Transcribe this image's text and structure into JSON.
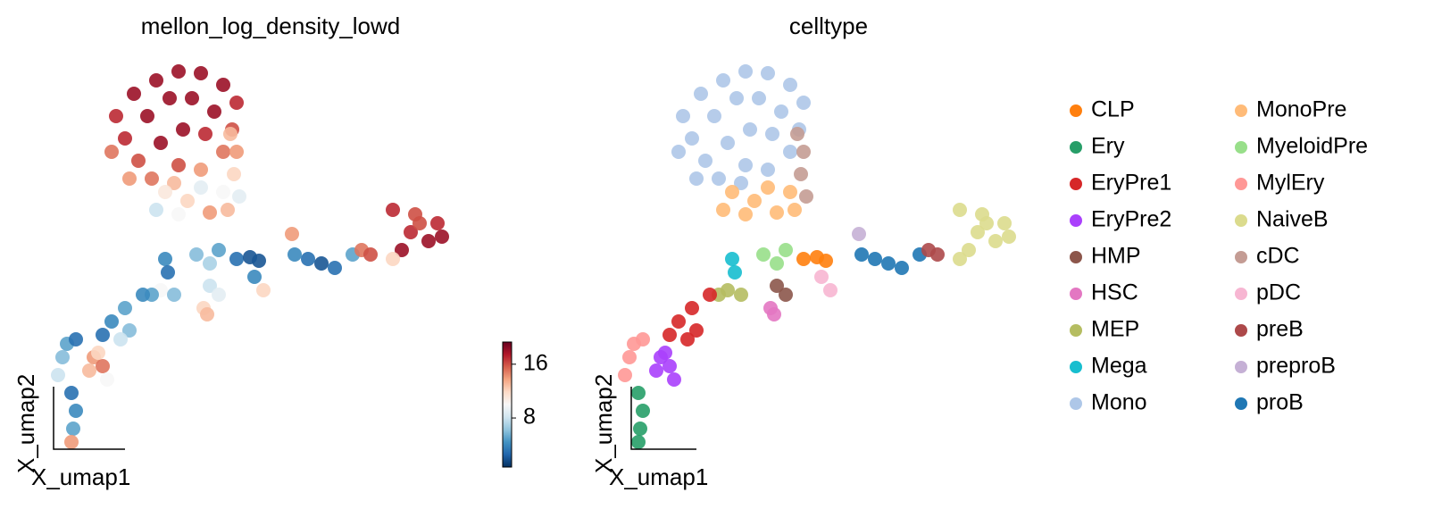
{
  "chart_data": [
    {
      "type": "scatter",
      "title": "mellon_log_density_lowd",
      "x_label": "X_umap1",
      "y_label": "X_umap2",
      "xlim": [
        0,
        560
      ],
      "ylim": [
        0,
        520
      ],
      "colormap": "RdBu_r",
      "clim": [
        0.7,
        19.3
      ],
      "colorbar_ticks": [
        8,
        16
      ],
      "x": [
        130,
        150,
        175,
        200,
        225,
        250,
        265,
        140,
        165,
        190,
        215,
        240,
        260,
        155,
        180,
        205,
        230,
        250,
        170,
        200,
        225,
        125,
        145,
        195,
        185,
        210,
        235,
        255,
        200,
        225,
        175,
        250,
        265,
        262,
        268,
        258,
        220,
        235,
        245,
        185,
        188,
        235,
        245,
        228,
        232,
        180,
        195,
        170,
        160,
        140,
        125,
        145,
        115,
        135,
        105,
        115,
        100,
        120,
        110,
        75,
        70,
        65,
        85,
        80,
        85,
        82,
        80,
        265,
        280,
        290,
        285,
        295,
        327,
        345,
        360,
        375,
        395,
        330,
        405,
        415,
        440,
        460,
        480,
        495,
        450,
        490,
        470,
        440,
        465
      ],
      "y": [
        390,
        415,
        430,
        440,
        438,
        425,
        405,
        365,
        390,
        410,
        410,
        395,
        375,
        340,
        360,
        375,
        370,
        350,
        320,
        335,
        330,
        350,
        320,
        315,
        305,
        295,
        282,
        285,
        280,
        310,
        285,
        305,
        350,
        325,
        300,
        370,
        235,
        225,
        240,
        230,
        215,
        200,
        190,
        175,
        168,
        195,
        190,
        190,
        190,
        175,
        160,
        150,
        145,
        140,
        120,
        110,
        105,
        95,
        125,
        135,
        120,
        100,
        140,
        80,
        60,
        40,
        25,
        230,
        232,
        228,
        210,
        195,
        258,
        230,
        225,
        220,
        235,
        235,
        240,
        235,
        285,
        260,
        250,
        255,
        240,
        270,
        270,
        230,
        280
      ],
      "values": [
        17,
        18,
        18,
        18,
        18,
        18,
        17,
        17,
        18,
        18,
        18,
        18,
        16,
        16,
        18,
        18,
        17,
        15,
        15,
        16,
        14,
        15,
        14,
        13,
        11,
        12,
        14,
        13,
        10,
        9,
        8,
        10,
        14,
        12,
        9,
        13,
        6,
        7,
        5,
        4,
        3,
        8,
        9,
        12,
        13,
        10,
        6,
        5,
        4,
        5,
        4,
        6,
        3,
        8,
        14,
        15,
        13,
        10,
        12,
        5,
        6,
        8,
        3,
        3,
        4,
        5,
        14,
        3,
        2,
        2,
        4,
        12,
        14,
        3,
        2,
        3,
        5,
        4,
        15,
        16,
        17,
        17,
        18,
        18,
        18,
        17,
        16,
        12,
        16
      ]
    },
    {
      "type": "scatter",
      "title": "celltype",
      "x_label": "X_umap1",
      "y_label": "X_umap2",
      "xlim": [
        0,
        560
      ],
      "ylim": [
        0,
        520
      ],
      "x": [
        130,
        150,
        175,
        200,
        225,
        250,
        265,
        140,
        165,
        190,
        215,
        240,
        260,
        155,
        180,
        205,
        230,
        250,
        170,
        200,
        225,
        125,
        145,
        195,
        185,
        210,
        235,
        255,
        200,
        225,
        175,
        250,
        265,
        262,
        268,
        258,
        220,
        235,
        245,
        185,
        188,
        235,
        245,
        228,
        232,
        180,
        195,
        170,
        160,
        140,
        125,
        145,
        115,
        135,
        105,
        115,
        100,
        120,
        110,
        75,
        70,
        65,
        85,
        80,
        85,
        82,
        80,
        265,
        280,
        290,
        285,
        295,
        327,
        345,
        360,
        375,
        395,
        330,
        405,
        415,
        440,
        460,
        480,
        495,
        450,
        490,
        470,
        440,
        465
      ],
      "y": [
        390,
        415,
        430,
        440,
        438,
        425,
        405,
        365,
        390,
        410,
        410,
        395,
        375,
        340,
        360,
        375,
        370,
        350,
        320,
        335,
        330,
        350,
        320,
        315,
        305,
        295,
        282,
        285,
        280,
        310,
        285,
        305,
        350,
        325,
        300,
        370,
        235,
        225,
        240,
        230,
        215,
        200,
        190,
        175,
        168,
        195,
        190,
        190,
        190,
        175,
        160,
        150,
        145,
        140,
        120,
        110,
        105,
        95,
        125,
        135,
        120,
        100,
        140,
        80,
        60,
        40,
        25,
        230,
        232,
        228,
        210,
        195,
        258,
        230,
        225,
        220,
        235,
        235,
        240,
        235,
        285,
        260,
        250,
        255,
        240,
        270,
        270,
        230,
        280
      ],
      "point_categories": [
        "Mono",
        "Mono",
        "Mono",
        "Mono",
        "Mono",
        "Mono",
        "Mono",
        "Mono",
        "Mono",
        "Mono",
        "Mono",
        "Mono",
        "Mono",
        "Mono",
        "Mono",
        "Mono",
        "Mono",
        "Mono",
        "Mono",
        "Mono",
        "Mono",
        "Mono",
        "Mono",
        "Mono",
        "MonoPre",
        "MonoPre",
        "MonoPre",
        "MonoPre",
        "MonoPre",
        "MonoPre",
        "MonoPre",
        "MonoPre",
        "cDC",
        "cDC",
        "cDC",
        "cDC",
        "MyeloidPre",
        "MyeloidPre",
        "MyeloidPre",
        "Mega",
        "Mega",
        "HMP",
        "HMP",
        "HSC",
        "HSC",
        "MEP",
        "MEP",
        "MEP",
        "EryPre1",
        "EryPre1",
        "EryPre1",
        "EryPre1",
        "EryPre1",
        "EryPre1",
        "EryPre2",
        "EryPre2",
        "EryPre2",
        "EryPre2",
        "EryPre2",
        "MylEry",
        "MylEry",
        "MylEry",
        "MylEry",
        "Ery",
        "Ery",
        "Ery",
        "Ery",
        "CLP",
        "CLP",
        "CLP",
        "pDC",
        "pDC",
        "preproB",
        "proB",
        "proB",
        "proB",
        "proB",
        "proB",
        "preB",
        "preB",
        "NaiveB",
        "NaiveB",
        "NaiveB",
        "NaiveB",
        "NaiveB",
        "NaiveB",
        "NaiveB",
        "NaiveB",
        "NaiveB"
      ],
      "legend": {
        "entries": [
          "CLP",
          "Ery",
          "EryPre1",
          "EryPre2",
          "HMP",
          "HSC",
          "MEP",
          "Mega",
          "Mono",
          "MonoPre",
          "MyeloidPre",
          "MylEry",
          "NaiveB",
          "cDC",
          "pDC",
          "preB",
          "preproB",
          "proB"
        ],
        "colors": [
          "#ff7f0e",
          "#279e68",
          "#d62728",
          "#aa40fc",
          "#8c564b",
          "#e377c2",
          "#b5bd61",
          "#17becf",
          "#aec7e8",
          "#ffbb78",
          "#98df8a",
          "#ff9896",
          "#dbdb8d",
          "#c49c94",
          "#f7b6d2",
          "#ad494a",
          "#c5b0d5",
          "#1f77b4"
        ]
      }
    }
  ]
}
